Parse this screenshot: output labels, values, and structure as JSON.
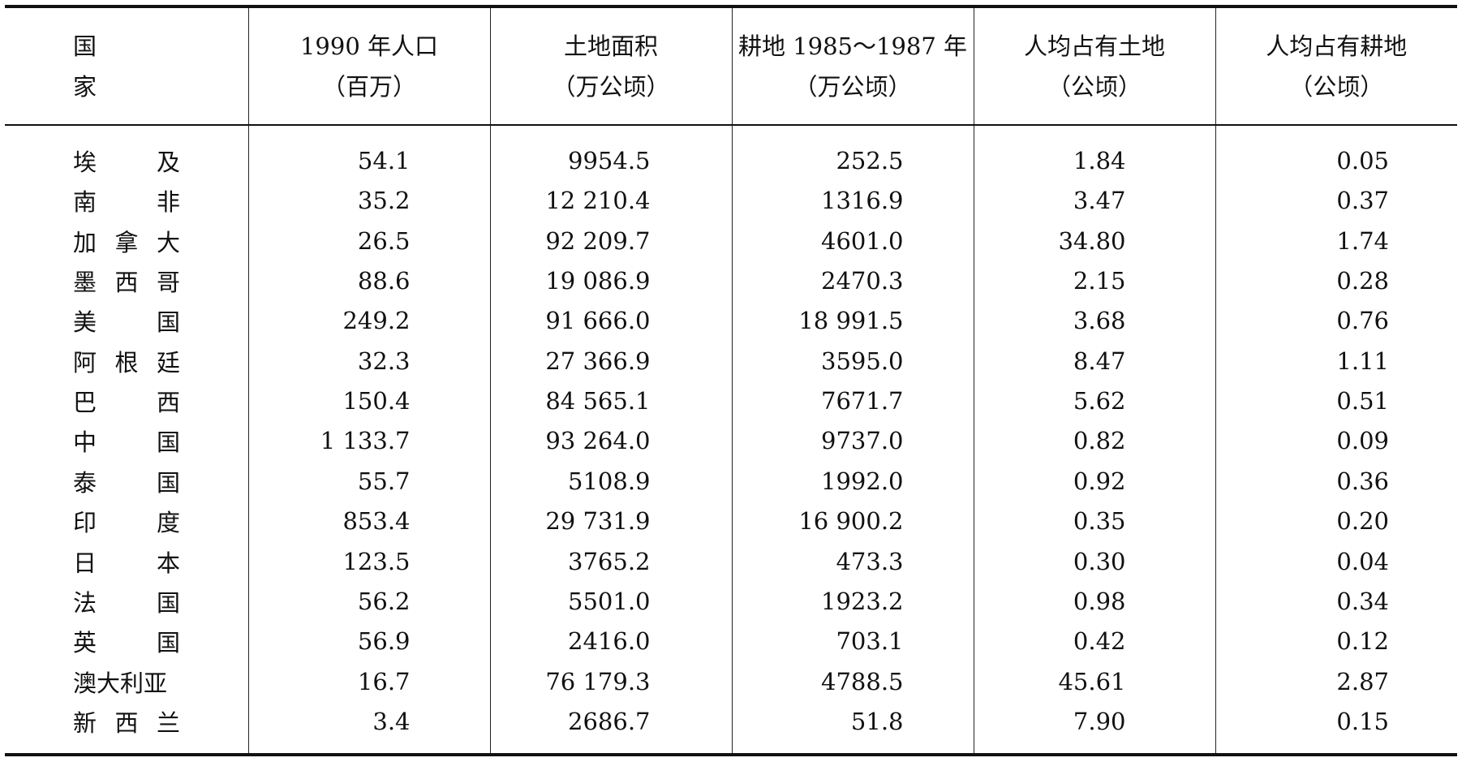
{
  "headers": [
    {
      "line1": "国　家",
      "line2": ""
    },
    {
      "line1": "1990 年人口",
      "line2": "（百万）"
    },
    {
      "line1": "土地面积",
      "line2": "（万公顷）"
    },
    {
      "line1": "耕地 1985～1987 年",
      "line2": "（万公顷）"
    },
    {
      "line1": "人均占有土地",
      "line2": "（公顷）"
    },
    {
      "line1": "人均占有耕地",
      "line2": "（公顷）"
    }
  ],
  "rows": [
    {
      "country": [
        "埃",
        "及"
      ],
      "population": "54.1",
      "land": "9954.5",
      "arable": "252.5",
      "land_per_capita": "1.84",
      "arable_per_capita": "0.05"
    },
    {
      "country": [
        "南",
        "非"
      ],
      "population": "35.2",
      "land": "12 210.4",
      "arable": "1316.9",
      "land_per_capita": "3.47",
      "arable_per_capita": "0.37"
    },
    {
      "country": [
        "加",
        "拿",
        "大"
      ],
      "population": "26.5",
      "land": "92 209.7",
      "arable": "4601.0",
      "land_per_capita": "34.80",
      "arable_per_capita": "1.74"
    },
    {
      "country": [
        "墨",
        "西",
        "哥"
      ],
      "population": "88.6",
      "land": "19 086.9",
      "arable": "2470.3",
      "land_per_capita": "2.15",
      "arable_per_capita": "0.28"
    },
    {
      "country": [
        "美",
        "国"
      ],
      "population": "249.2",
      "land": "91 666.0",
      "arable": "18 991.5",
      "land_per_capita": "3.68",
      "arable_per_capita": "0.76"
    },
    {
      "country": [
        "阿",
        "根",
        "廷"
      ],
      "population": "32.3",
      "land": "27 366.9",
      "arable": "3595.0",
      "land_per_capita": "8.47",
      "arable_per_capita": "1.11"
    },
    {
      "country": [
        "巴",
        "西"
      ],
      "population": "150.4",
      "land": "84 565.1",
      "arable": "7671.7",
      "land_per_capita": "5.62",
      "arable_per_capita": "0.51"
    },
    {
      "country": [
        "中",
        "国"
      ],
      "population": "1 133.7",
      "land": "93 264.0",
      "arable": "9737.0",
      "land_per_capita": "0.82",
      "arable_per_capita": "0.09"
    },
    {
      "country": [
        "泰",
        "国"
      ],
      "population": "55.7",
      "land": "5108.9",
      "arable": "1992.0",
      "land_per_capita": "0.92",
      "arable_per_capita": "0.36"
    },
    {
      "country": [
        "印",
        "度"
      ],
      "population": "853.4",
      "land": "29 731.9",
      "arable": "16 900.2",
      "land_per_capita": "0.35",
      "arable_per_capita": "0.20"
    },
    {
      "country": [
        "日",
        "本"
      ],
      "population": "123.5",
      "land": "3765.2",
      "arable": "473.3",
      "land_per_capita": "0.30",
      "arable_per_capita": "0.04"
    },
    {
      "country": [
        "法",
        "国"
      ],
      "population": "56.2",
      "land": "5501.0",
      "arable": "1923.2",
      "land_per_capita": "0.98",
      "arable_per_capita": "0.34"
    },
    {
      "country": [
        "英",
        "国"
      ],
      "population": "56.9",
      "land": "2416.0",
      "arable": "703.1",
      "land_per_capita": "0.42",
      "arable_per_capita": "0.12"
    },
    {
      "country": [
        "澳大利亚"
      ],
      "population": "16.7",
      "land": "76 179.3",
      "arable": "4788.5",
      "land_per_capita": "45.61",
      "arable_per_capita": "2.87"
    },
    {
      "country": [
        "新",
        "西",
        "兰"
      ],
      "population": "3.4",
      "land": "2686.7",
      "arable": "51.8",
      "land_per_capita": "7.90",
      "arable_per_capita": "0.15"
    }
  ]
}
